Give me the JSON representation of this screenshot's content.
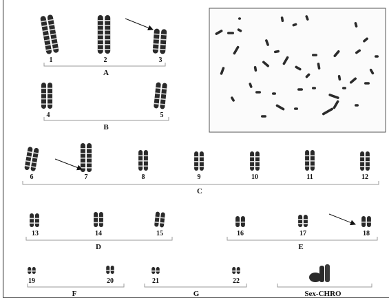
{
  "figure": {
    "groups": {
      "a": "A",
      "b": "B",
      "c": "C",
      "d": "D",
      "e": "E",
      "f": "F",
      "g": "G",
      "sex": "Sex-CHRO"
    },
    "chromosomes": {
      "c1": "1",
      "c2": "2",
      "c3": "3",
      "c4": "4",
      "c5": "5",
      "c6": "6",
      "c7": "7",
      "c8": "8",
      "c9": "9",
      "c10": "10",
      "c11": "11",
      "c12": "12",
      "c13": "13",
      "c14": "14",
      "c15": "15",
      "c16": "16",
      "c17": "17",
      "c18": "18",
      "c19": "19",
      "c20": "20",
      "c21": "21",
      "c22": "22"
    },
    "colors": {
      "chromatin": "#2a2a2a",
      "ink": "#111111",
      "bracket": "#9a9a9a",
      "panel_border": "#555555"
    }
  }
}
